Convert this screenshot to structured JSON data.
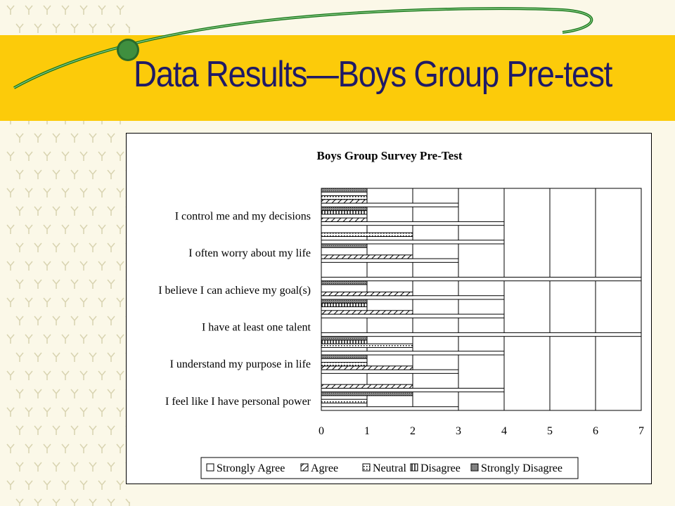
{
  "page": {
    "title": "Data Results—Boys Group Pre-test"
  },
  "colors": {
    "band": "#fccb0a",
    "title": "#1f1a66",
    "swirl": "#1e7a1e",
    "background": "#fbf8e8"
  },
  "chart_data": {
    "type": "bar",
    "orientation": "horizontal",
    "title": "Boys Group Survey Pre-Test",
    "categories": [
      "I feel like I have personal power",
      "",
      "I understand my purpose in life",
      "",
      "I have at least one talent",
      "",
      "I believe I can achieve my goal(s)",
      "",
      "I often worry about my life",
      "",
      "I control me and my decisions",
      ""
    ],
    "series": [
      {
        "name": "Strongly Agree",
        "values": [
          3,
          4,
          3,
          4,
          7,
          4,
          4,
          7,
          3,
          4,
          4,
          3
        ]
      },
      {
        "name": "Agree",
        "values": [
          0,
          2,
          2,
          0,
          0,
          2,
          2,
          0,
          2,
          0,
          1,
          1
        ]
      },
      {
        "name": "Neutral",
        "values": [
          1,
          0,
          1,
          2,
          0,
          0,
          0,
          0,
          0,
          2,
          0,
          1
        ]
      },
      {
        "name": "Disagree",
        "values": [
          0,
          0,
          0,
          1,
          0,
          1,
          0,
          0,
          0,
          0,
          1,
          0
        ]
      },
      {
        "name": "Strongly Disagree",
        "values": [
          2,
          0,
          1,
          1,
          0,
          1,
          1,
          0,
          1,
          0,
          1,
          1
        ]
      }
    ],
    "xlim": [
      0,
      7
    ],
    "xticks": [
      0,
      1,
      2,
      3,
      4,
      5,
      6,
      7
    ],
    "grid": "vertical",
    "legend_position": "bottom"
  }
}
